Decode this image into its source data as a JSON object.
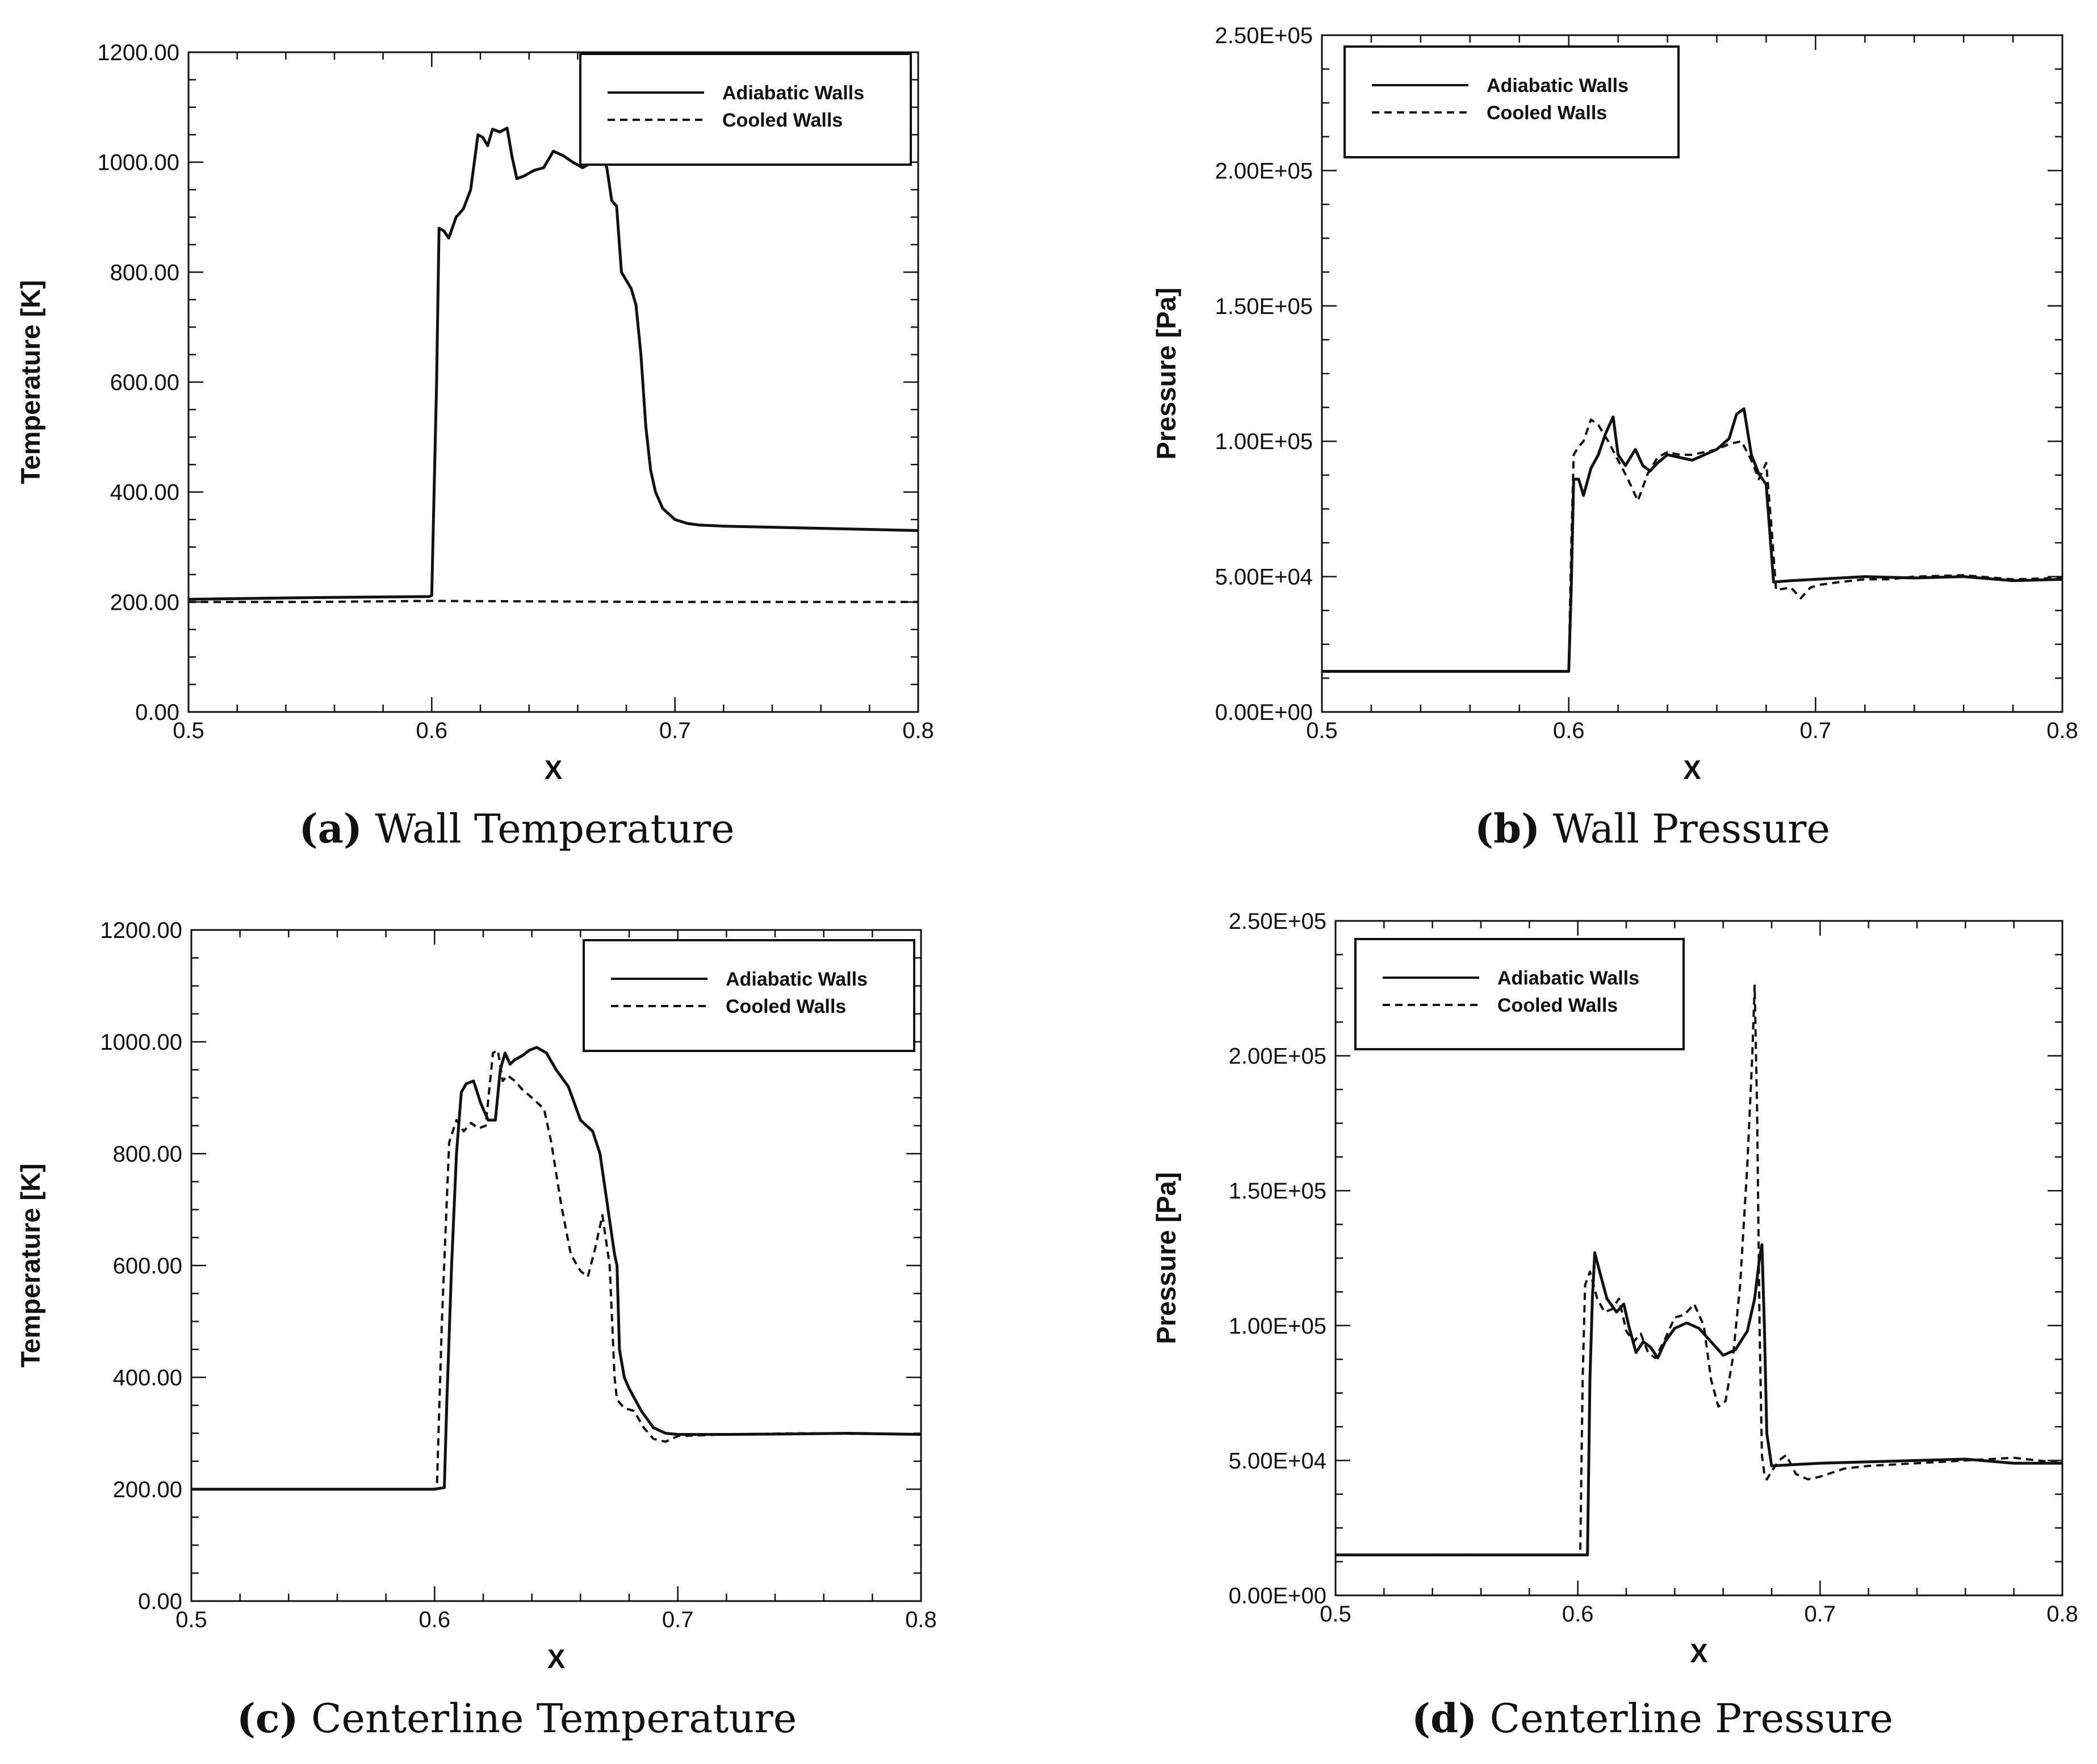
{
  "chart_data": [
    {
      "type": "line",
      "panel_label": "(a)",
      "panel_title": "Wall Temperature",
      "xlabel": "X",
      "ylabel": "Temperature [K]",
      "xlim": [
        0.5,
        0.8
      ],
      "ylim": [
        0,
        1200
      ],
      "xticks": [
        0.5,
        0.6,
        0.7,
        0.8
      ],
      "xtick_labels": [
        "0.5",
        "0.6",
        "0.7",
        "0.8"
      ],
      "yticks": [
        0,
        200,
        400,
        600,
        800,
        1000,
        1200
      ],
      "ytick_labels": [
        "0.00",
        "200.00",
        "400.00",
        "600.00",
        "800.00",
        "1000.00",
        "1200.00"
      ],
      "legend_position": "top-right",
      "series": [
        {
          "name": "Adiabatic Walls",
          "style": "solid",
          "x": [
            0.5,
            0.55,
            0.599,
            0.6,
            0.602,
            0.603,
            0.605,
            0.607,
            0.61,
            0.613,
            0.616,
            0.619,
            0.621,
            0.623,
            0.625,
            0.628,
            0.631,
            0.633,
            0.635,
            0.638,
            0.642,
            0.646,
            0.65,
            0.654,
            0.658,
            0.662,
            0.666,
            0.67,
            0.672,
            0.674,
            0.676,
            0.678,
            0.68,
            0.682,
            0.684,
            0.686,
            0.688,
            0.69,
            0.692,
            0.695,
            0.7,
            0.705,
            0.71,
            0.72,
            0.75,
            0.8
          ],
          "y": [
            205,
            208,
            210,
            212,
            600,
            880,
            875,
            862,
            900,
            915,
            950,
            1050,
            1045,
            1030,
            1060,
            1055,
            1062,
            1010,
            970,
            975,
            985,
            990,
            1020,
            1012,
            1000,
            990,
            1000,
            1015,
            990,
            930,
            920,
            800,
            785,
            770,
            740,
            650,
            520,
            440,
            400,
            370,
            350,
            343,
            340,
            338,
            335,
            330
          ]
        },
        {
          "name": "Cooled Walls",
          "style": "dashed",
          "x": [
            0.5,
            0.55,
            0.6,
            0.65,
            0.7,
            0.75,
            0.8
          ],
          "y": [
            200,
            200,
            202,
            201,
            200,
            200,
            200
          ]
        }
      ]
    },
    {
      "type": "line",
      "panel_label": "(b)",
      "panel_title": "Wall Pressure",
      "xlabel": "X",
      "ylabel": "Pressure [Pa]",
      "xlim": [
        0.5,
        0.8
      ],
      "ylim": [
        0,
        250000
      ],
      "xticks": [
        0.5,
        0.6,
        0.7,
        0.8
      ],
      "xtick_labels": [
        "0.5",
        "0.6",
        "0.7",
        "0.8"
      ],
      "yticks": [
        0,
        50000,
        100000,
        150000,
        200000,
        250000
      ],
      "ytick_labels": [
        "0.00E+00",
        "5.00E+04",
        "1.00E+05",
        "1.50E+05",
        "2.00E+05",
        "2.50E+05"
      ],
      "legend_position": "top-left",
      "series": [
        {
          "name": "Adiabatic Walls",
          "style": "solid",
          "x": [
            0.5,
            0.6,
            0.601,
            0.602,
            0.604,
            0.606,
            0.609,
            0.612,
            0.615,
            0.618,
            0.62,
            0.623,
            0.627,
            0.63,
            0.633,
            0.636,
            0.64,
            0.645,
            0.65,
            0.655,
            0.66,
            0.665,
            0.668,
            0.671,
            0.674,
            0.677,
            0.68,
            0.682,
            0.683,
            0.69,
            0.7,
            0.72,
            0.74,
            0.76,
            0.78,
            0.8
          ],
          "y": [
            15000,
            15000,
            45000,
            86000,
            86000,
            80000,
            90000,
            95000,
            103000,
            109000,
            95000,
            91000,
            97000,
            91000,
            89000,
            92000,
            95000,
            94000,
            93000,
            95000,
            97000,
            101000,
            110000,
            112000,
            95000,
            88000,
            84000,
            60000,
            48000,
            48500,
            49000,
            50000,
            49500,
            50000,
            48500,
            49000
          ]
        },
        {
          "name": "Cooled Walls",
          "style": "dashed",
          "x": [
            0.5,
            0.6,
            0.601,
            0.602,
            0.604,
            0.606,
            0.609,
            0.612,
            0.616,
            0.62,
            0.624,
            0.628,
            0.632,
            0.636,
            0.64,
            0.645,
            0.65,
            0.655,
            0.66,
            0.665,
            0.67,
            0.674,
            0.677,
            0.68,
            0.682,
            0.684,
            0.69,
            0.694,
            0.698,
            0.702,
            0.71,
            0.72,
            0.73,
            0.74,
            0.76,
            0.78,
            0.8
          ],
          "y": [
            15000,
            15000,
            60000,
            95000,
            98000,
            100000,
            108000,
            106000,
            100000,
            93000,
            86000,
            78000,
            88000,
            94000,
            96000,
            95000,
            95000,
            96000,
            97000,
            99000,
            100000,
            93000,
            86000,
            92000,
            70000,
            45000,
            46000,
            42000,
            46000,
            47000,
            48000,
            49000,
            49000,
            50000,
            50500,
            49000,
            49500
          ]
        }
      ]
    },
    {
      "type": "line",
      "panel_label": "(c)",
      "panel_title": "Centerline Temperature",
      "xlabel": "X",
      "ylabel": "Temperature [K]",
      "xlim": [
        0.5,
        0.8
      ],
      "ylim": [
        0,
        1200
      ],
      "xticks": [
        0.5,
        0.6,
        0.7,
        0.8
      ],
      "xtick_labels": [
        "0.5",
        "0.6",
        "0.7",
        "0.8"
      ],
      "yticks": [
        0,
        200,
        400,
        600,
        800,
        1000,
        1200
      ],
      "ytick_labels": [
        "0.00",
        "200.00",
        "400.00",
        "600.00",
        "800.00",
        "1000.00",
        "1200.00"
      ],
      "legend_position": "top-right",
      "series": [
        {
          "name": "Adiabatic Walls",
          "style": "solid",
          "x": [
            0.5,
            0.6,
            0.604,
            0.605,
            0.607,
            0.609,
            0.611,
            0.613,
            0.616,
            0.619,
            0.622,
            0.625,
            0.627,
            0.629,
            0.631,
            0.633,
            0.636,
            0.639,
            0.642,
            0.646,
            0.65,
            0.655,
            0.66,
            0.665,
            0.668,
            0.67,
            0.672,
            0.674,
            0.675,
            0.676,
            0.678,
            0.68,
            0.685,
            0.69,
            0.695,
            0.7,
            0.72,
            0.75,
            0.77,
            0.8
          ],
          "y": [
            200,
            200,
            203,
            350,
            600,
            800,
            910,
            925,
            930,
            890,
            860,
            860,
            950,
            980,
            960,
            968,
            975,
            985,
            990,
            980,
            950,
            920,
            860,
            840,
            800,
            740,
            680,
            620,
            600,
            450,
            400,
            380,
            340,
            310,
            300,
            298,
            298,
            299,
            300,
            298
          ]
        },
        {
          "name": "Cooled Walls",
          "style": "dashed",
          "x": [
            0.5,
            0.6,
            0.601,
            0.603,
            0.606,
            0.609,
            0.612,
            0.615,
            0.618,
            0.621,
            0.624,
            0.626,
            0.628,
            0.63,
            0.633,
            0.636,
            0.64,
            0.645,
            0.648,
            0.652,
            0.656,
            0.66,
            0.663,
            0.666,
            0.669,
            0.672,
            0.674,
            0.675,
            0.678,
            0.682,
            0.686,
            0.69,
            0.695,
            0.7,
            0.72,
            0.75,
            0.8
          ],
          "y": [
            200,
            200,
            210,
            500,
            820,
            860,
            840,
            855,
            845,
            850,
            980,
            985,
            930,
            940,
            930,
            915,
            900,
            880,
            820,
            710,
            620,
            590,
            580,
            630,
            690,
            600,
            400,
            360,
            345,
            340,
            310,
            290,
            285,
            295,
            298,
            300,
            298
          ]
        }
      ]
    },
    {
      "type": "line",
      "panel_label": "(d)",
      "panel_title": "Centerline Pressure",
      "xlabel": "X",
      "ylabel": "Pressure [Pa]",
      "xlim": [
        0.5,
        0.8
      ],
      "ylim": [
        0,
        250000
      ],
      "xticks": [
        0.5,
        0.6,
        0.7,
        0.8
      ],
      "xtick_labels": [
        "0.5",
        "0.6",
        "0.7",
        "0.8"
      ],
      "yticks": [
        0,
        50000,
        100000,
        150000,
        200000,
        250000
      ],
      "ytick_labels": [
        "0.00E+00",
        "5.00E+04",
        "1.00E+05",
        "1.50E+05",
        "2.00E+05",
        "2.50E+05"
      ],
      "legend_position": "top-left",
      "series": [
        {
          "name": "Adiabatic Walls",
          "style": "solid",
          "x": [
            0.5,
            0.604,
            0.605,
            0.606,
            0.607,
            0.609,
            0.612,
            0.616,
            0.619,
            0.621,
            0.624,
            0.627,
            0.63,
            0.633,
            0.636,
            0.64,
            0.645,
            0.65,
            0.655,
            0.66,
            0.665,
            0.67,
            0.673,
            0.675,
            0.676,
            0.677,
            0.678,
            0.68,
            0.69,
            0.7,
            0.72,
            0.74,
            0.76,
            0.78,
            0.8
          ],
          "y": [
            15000,
            15000,
            80000,
            110000,
            127000,
            120000,
            110000,
            105000,
            108000,
            100000,
            90000,
            94000,
            92000,
            88000,
            94000,
            99000,
            101000,
            99000,
            94000,
            89000,
            91000,
            98000,
            110000,
            125000,
            130000,
            100000,
            60000,
            48000,
            48500,
            49000,
            49500,
            50000,
            50500,
            49000,
            49000
          ]
        },
        {
          "name": "Cooled Walls",
          "style": "dashed",
          "x": [
            0.5,
            0.601,
            0.602,
            0.603,
            0.605,
            0.608,
            0.611,
            0.614,
            0.617,
            0.62,
            0.623,
            0.626,
            0.629,
            0.632,
            0.636,
            0.64,
            0.644,
            0.648,
            0.652,
            0.655,
            0.658,
            0.661,
            0.664,
            0.667,
            0.67,
            0.672,
            0.673,
            0.674,
            0.675,
            0.676,
            0.677,
            0.678,
            0.68,
            0.683,
            0.686,
            0.69,
            0.695,
            0.7,
            0.71,
            0.72,
            0.74,
            0.76,
            0.78,
            0.8
          ],
          "y": [
            15000,
            15000,
            80000,
            115000,
            120000,
            110000,
            105000,
            106000,
            110000,
            98000,
            94000,
            97000,
            90000,
            88000,
            95000,
            103000,
            104000,
            108000,
            100000,
            80000,
            70000,
            72000,
            88000,
            115000,
            160000,
            200000,
            226000,
            180000,
            100000,
            52000,
            45000,
            43000,
            46000,
            50000,
            52000,
            45000,
            43000,
            44000,
            47000,
            48000,
            49000,
            50000,
            51000,
            49000
          ]
        }
      ]
    }
  ]
}
